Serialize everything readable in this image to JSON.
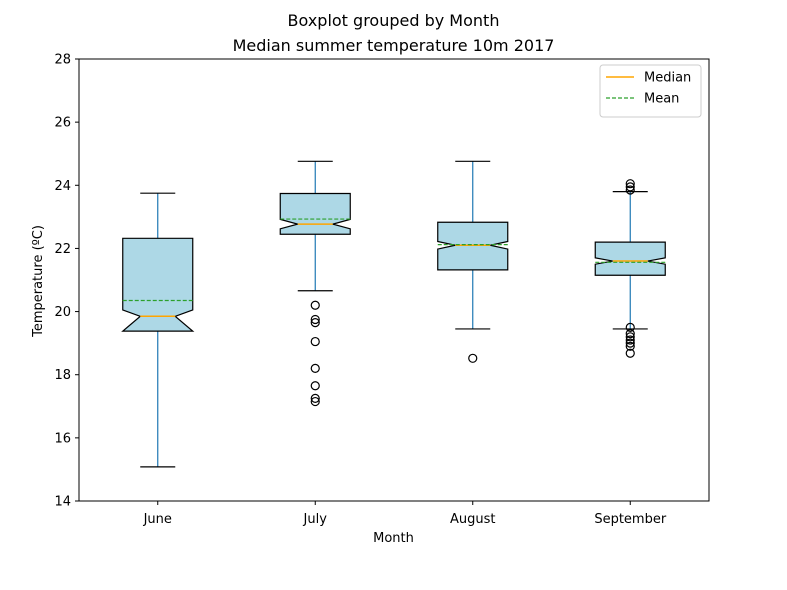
{
  "chart_data": {
    "type": "boxplot",
    "suptitle": "Boxplot grouped by Month",
    "title": "Median summer temperature 10m 2017",
    "xlabel": "Month",
    "ylabel": "Temperature (ºC)",
    "ylim": [
      14,
      28
    ],
    "yticks": [
      14,
      16,
      18,
      20,
      22,
      24,
      26,
      28
    ],
    "grid": false,
    "notch": true,
    "legend": {
      "placement": "top-right",
      "entries": [
        {
          "label": "Median",
          "style": "solid",
          "color": "#ffa500"
        },
        {
          "label": "Mean",
          "style": "dashed",
          "color": "#2ca02c"
        }
      ]
    },
    "colors": {
      "box_fill": "#add8e6",
      "whisker": "#1f77b4",
      "median": "#ffa500",
      "mean": "#2ca02c"
    },
    "categories": [
      "June",
      "July",
      "August",
      "September"
    ],
    "boxes": [
      {
        "name": "June",
        "whisker_low": 15.08,
        "q1": 19.38,
        "median": 19.85,
        "q3": 22.32,
        "whisker_high": 23.75,
        "mean": 20.35,
        "notch_low": 19.38,
        "notch_high": 20.05,
        "outliers": []
      },
      {
        "name": "July",
        "whisker_low": 20.66,
        "q1": 22.45,
        "median": 22.77,
        "q3": 23.74,
        "whisker_high": 24.76,
        "mean": 22.93,
        "notch_low": 22.62,
        "notch_high": 22.92,
        "outliers": [
          17.15,
          17.25,
          17.65,
          18.2,
          19.05,
          19.65,
          19.75,
          20.2
        ]
      },
      {
        "name": "August",
        "whisker_low": 19.45,
        "q1": 21.32,
        "median": 22.1,
        "q3": 22.83,
        "whisker_high": 24.76,
        "mean": 22.12,
        "notch_low": 21.98,
        "notch_high": 22.22,
        "outliers": [
          18.52
        ]
      },
      {
        "name": "September",
        "whisker_low": 19.45,
        "q1": 21.15,
        "median": 21.6,
        "q3": 22.2,
        "whisker_high": 23.8,
        "mean": 21.56,
        "notch_low": 21.5,
        "notch_high": 21.7,
        "outliers": [
          18.68,
          18.9,
          19.0,
          19.1,
          19.2,
          19.3,
          19.5,
          23.85,
          23.95,
          24.05
        ]
      }
    ]
  }
}
